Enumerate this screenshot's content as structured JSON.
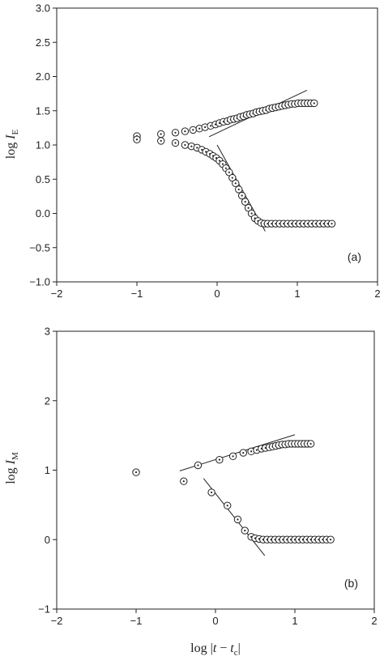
{
  "chart_data": [
    {
      "type": "scatter",
      "panel_label": "(a)",
      "ylabel": {
        "prefix": "log ",
        "var": "I",
        "sub": "E"
      },
      "xlabel": null,
      "xlim": [
        -2,
        2
      ],
      "ylim": [
        -1.0,
        3.0
      ],
      "xticks": [
        -2,
        -1,
        0,
        1,
        2
      ],
      "xtick_labels": [
        "−2",
        "−1",
        "0",
        "1",
        "2"
      ],
      "yticks": [
        -1.0,
        -0.5,
        0.0,
        0.5,
        1.0,
        1.5,
        2.0,
        2.5,
        3.0
      ],
      "ytick_labels": [
        "−1.0",
        "−0.5",
        "0.0",
        "0.5",
        "1.0",
        "1.5",
        "2.0",
        "2.5",
        "3.0"
      ],
      "grid": false,
      "series": [
        {
          "marker": "circle-dot",
          "x": [
            -1.0,
            -0.7,
            -0.52,
            -0.4,
            -0.3,
            -0.22,
            -0.15,
            -0.08,
            -0.02,
            0.03,
            0.08,
            0.13,
            0.17,
            0.21,
            0.25,
            0.29,
            0.33,
            0.37,
            0.41,
            0.45,
            0.49,
            0.53,
            0.57,
            0.61,
            0.65,
            0.69,
            0.73,
            0.77,
            0.81,
            0.85,
            0.89,
            0.93,
            0.97,
            1.01,
            1.05,
            1.09,
            1.13,
            1.17,
            1.21
          ],
          "y": [
            1.13,
            1.16,
            1.18,
            1.2,
            1.22,
            1.24,
            1.26,
            1.28,
            1.3,
            1.32,
            1.34,
            1.35,
            1.37,
            1.38,
            1.39,
            1.41,
            1.42,
            1.44,
            1.45,
            1.46,
            1.48,
            1.49,
            1.5,
            1.51,
            1.53,
            1.54,
            1.55,
            1.56,
            1.57,
            1.58,
            1.59,
            1.6,
            1.6,
            1.61,
            1.61,
            1.61,
            1.61,
            1.61,
            1.61
          ]
        },
        {
          "marker": "circle-dot",
          "x": [
            -1.0,
            -0.7,
            -0.52,
            -0.4,
            -0.32,
            -0.25,
            -0.19,
            -0.14,
            -0.09,
            -0.05,
            -0.01,
            0.03,
            0.07,
            0.11,
            0.15,
            0.19,
            0.23,
            0.27,
            0.31,
            0.35,
            0.39,
            0.43,
            0.47,
            0.51,
            0.55,
            0.59,
            0.63,
            0.68,
            0.73,
            0.78,
            0.83,
            0.88,
            0.93,
            0.98,
            1.03,
            1.08,
            1.13,
            1.18,
            1.23,
            1.28,
            1.33,
            1.38,
            1.43
          ],
          "y": [
            1.08,
            1.06,
            1.03,
            1.0,
            0.98,
            0.96,
            0.93,
            0.9,
            0.87,
            0.84,
            0.81,
            0.77,
            0.72,
            0.66,
            0.6,
            0.52,
            0.44,
            0.35,
            0.26,
            0.17,
            0.08,
            0.0,
            -0.07,
            -0.11,
            -0.14,
            -0.15,
            -0.15,
            -0.15,
            -0.15,
            -0.15,
            -0.15,
            -0.15,
            -0.15,
            -0.15,
            -0.15,
            -0.15,
            -0.15,
            -0.15,
            -0.15,
            -0.15,
            -0.15,
            -0.15,
            -0.15
          ]
        }
      ],
      "fit_lines": [
        {
          "x": [
            -0.1,
            1.12
          ],
          "y": [
            1.12,
            1.8
          ]
        },
        {
          "x": [
            0.0,
            0.6
          ],
          "y": [
            1.0,
            -0.26
          ]
        }
      ]
    },
    {
      "type": "scatter",
      "panel_label": "(b)",
      "ylabel": {
        "prefix": "log ",
        "var": "I",
        "sub": "M"
      },
      "xlabel": {
        "prefix": "log |",
        "var": "t",
        "mid": " − ",
        "var2": "t",
        "sub2": "c",
        "suffix": "|"
      },
      "xlim": [
        -2,
        2
      ],
      "ylim": [
        -1,
        3
      ],
      "xticks": [
        -2,
        -1,
        0,
        1,
        2
      ],
      "xtick_labels": [
        "−2",
        "−1",
        "0",
        "1",
        "2"
      ],
      "yticks": [
        -1,
        0,
        1,
        2,
        3
      ],
      "ytick_labels": [
        "−1",
        "0",
        "1",
        "2",
        "3"
      ],
      "grid": false,
      "series": [
        {
          "marker": "circle-dot",
          "x": [
            -1.0,
            -0.22,
            0.05,
            0.22,
            0.35,
            0.45,
            0.52,
            0.58,
            0.63,
            0.68,
            0.72,
            0.76,
            0.8,
            0.84,
            0.88,
            0.92,
            0.96,
            1.0,
            1.04,
            1.08,
            1.12,
            1.16,
            1.2
          ],
          "y": [
            0.97,
            1.07,
            1.15,
            1.2,
            1.25,
            1.27,
            1.29,
            1.31,
            1.32,
            1.33,
            1.34,
            1.35,
            1.36,
            1.37,
            1.37,
            1.38,
            1.38,
            1.38,
            1.38,
            1.38,
            1.38,
            1.38,
            1.38
          ]
        },
        {
          "marker": "circle-dot",
          "x": [
            -0.4,
            -0.05,
            0.15,
            0.28,
            0.37,
            0.45,
            0.5,
            0.55,
            0.6,
            0.65,
            0.7,
            0.75,
            0.8,
            0.85,
            0.9,
            0.95,
            1.0,
            1.05,
            1.1,
            1.15,
            1.2,
            1.25,
            1.3,
            1.35,
            1.4,
            1.45
          ],
          "y": [
            0.84,
            0.68,
            0.49,
            0.29,
            0.13,
            0.04,
            0.02,
            0.01,
            0.0,
            0.0,
            0.0,
            0.0,
            0.0,
            0.0,
            0.0,
            0.0,
            0.0,
            0.0,
            0.0,
            0.0,
            0.0,
            0.0,
            0.0,
            0.0,
            0.0,
            0.0
          ]
        }
      ],
      "fit_lines": [
        {
          "x": [
            -0.45,
            1.0
          ],
          "y": [
            0.99,
            1.51
          ]
        },
        {
          "x": [
            -0.15,
            0.62
          ],
          "y": [
            0.88,
            -0.23
          ]
        }
      ]
    }
  ]
}
